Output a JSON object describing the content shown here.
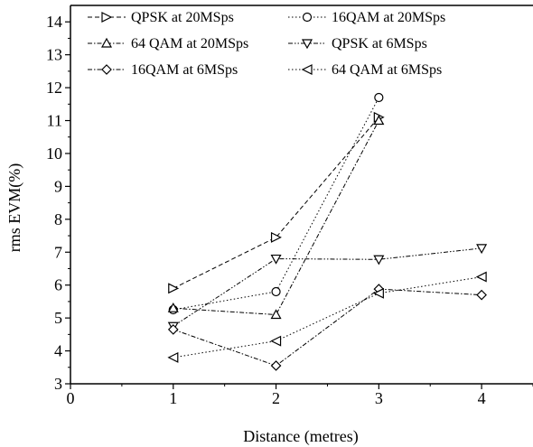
{
  "chart_data": {
    "type": "line",
    "xlabel": "Distance (metres)",
    "ylabel": "rms EVM(%)",
    "xlim": [
      0,
      4.5
    ],
    "ylim": [
      3,
      14.5
    ],
    "xticks": [
      0,
      1,
      2,
      3,
      4
    ],
    "yticks": [
      3,
      4,
      5,
      6,
      7,
      8,
      9,
      10,
      11,
      12,
      13,
      14
    ],
    "grid": false,
    "legend_position": "top",
    "series": [
      {
        "name": "QPSK at 20MSps",
        "marker": "triangle-right",
        "dash": "dash",
        "x": [
          1,
          2,
          3
        ],
        "y": [
          5.9,
          7.45,
          11.1
        ]
      },
      {
        "name": "16QAM at 20MSps",
        "marker": "circle",
        "dash": "dot",
        "x": [
          1,
          2,
          3
        ],
        "y": [
          5.25,
          5.8,
          11.7
        ]
      },
      {
        "name": "64 QAM at 20MSps",
        "marker": "triangle-up",
        "dash": "dashdot",
        "x": [
          1,
          2,
          3
        ],
        "y": [
          5.3,
          5.1,
          11.0
        ]
      },
      {
        "name": "QPSK at 6MSps",
        "marker": "triangle-down",
        "dash": "dashdotdot",
        "x": [
          1,
          2,
          3,
          4
        ],
        "y": [
          4.75,
          6.8,
          6.78,
          7.12
        ]
      },
      {
        "name": "16QAM at 6MSps",
        "marker": "diamond",
        "dash": "dashdot",
        "x": [
          1,
          2,
          3,
          4
        ],
        "y": [
          4.65,
          3.55,
          5.88,
          5.7
        ]
      },
      {
        "name": "64 QAM at 6MSps",
        "marker": "triangle-left",
        "dash": "dot",
        "x": [
          1,
          2,
          3,
          4
        ],
        "y": [
          3.8,
          4.3,
          5.75,
          6.25
        ]
      }
    ]
  }
}
